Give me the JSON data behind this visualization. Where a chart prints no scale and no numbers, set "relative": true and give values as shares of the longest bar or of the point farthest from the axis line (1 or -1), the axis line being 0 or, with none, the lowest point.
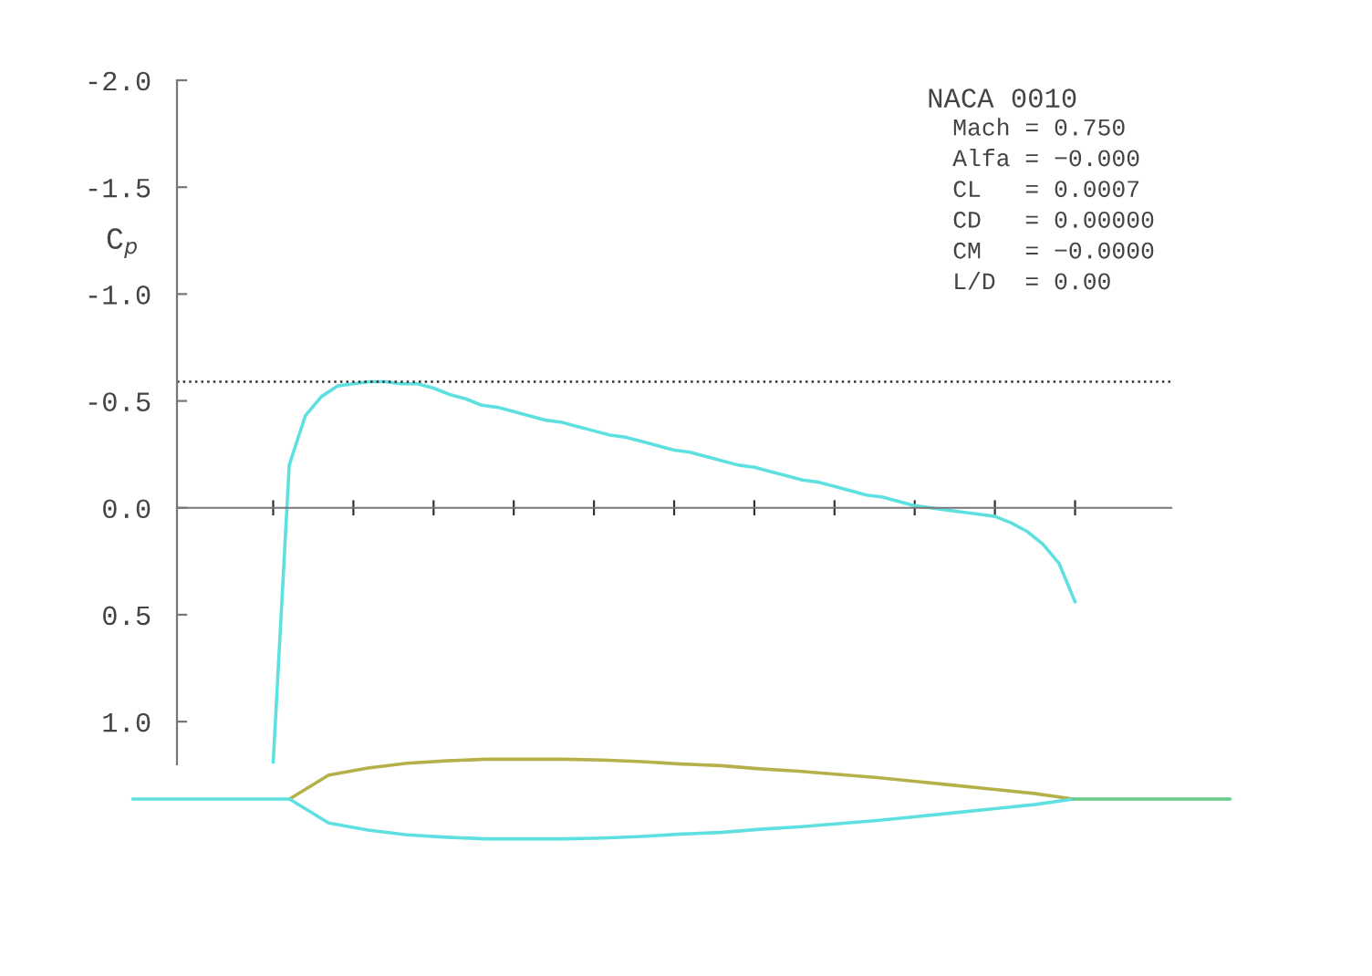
{
  "chart_data": [
    {
      "type": "line",
      "ylabel": "C$_{p}$",
      "annotations": [
        "NACA 0010",
        "Mach = 0.750",
        "Alfa = −0.000",
        "CL   = 0.0007",
        "CD   = 0.00000",
        "CM   = −0.0000",
        "L/D  = 0.00"
      ],
      "categories": [
        null,
        null,
        null,
        null,
        null,
        null,
        null,
        null,
        null,
        null,
        null,
        null,
        null,
        null,
        null,
        null,
        null,
        null,
        null,
        null,
        null,
        null,
        null,
        null,
        null,
        null,
        null,
        null,
        null,
        null,
        null,
        null,
        null,
        null,
        null,
        null,
        null,
        null,
        null,
        null,
        null,
        null,
        null,
        null,
        null,
        null,
        null,
        null,
        null,
        null,
        null
      ],
      "series": [
        {
          "color": "#5fe0e0",
          "values": [
            1.19,
            -0.2,
            -0.43,
            -0.52,
            -0.57,
            -0.58,
            -0.59,
            -0.59,
            -0.58,
            -0.58,
            -0.56,
            -0.53,
            -0.51,
            -0.48,
            -0.47,
            -0.45,
            -0.43,
            -0.41,
            -0.4,
            -0.38,
            -0.36,
            -0.34,
            -0.33,
            -0.31,
            -0.29,
            -0.27,
            -0.26,
            -0.24,
            -0.22,
            -0.2,
            -0.19,
            -0.17,
            -0.15,
            -0.13,
            -0.12,
            -0.1,
            -0.08,
            -0.06,
            -0.05,
            -0.03,
            -0.01,
            0.0,
            0.01,
            0.02,
            0.03,
            0.04,
            0.07,
            0.11,
            0.17,
            0.26,
            0.44
          ]
        }
      ],
      "ylim": [
        1.2,
        -2.0
      ],
      "yticks": [
        {
          "value": -2.0,
          "label": "-2.0"
        },
        {
          "value": -1.5,
          "label": "-1.5"
        },
        {
          "value": -1.0,
          "label": "-1.0"
        },
        {
          "value": -0.5,
          "label": "-0.5"
        },
        {
          "value": 0.0,
          "label": "0.0"
        },
        {
          "value": 0.5,
          "label": "0.5"
        },
        {
          "value": 1.0,
          "label": "1.0"
        }
      ],
      "ref_lines": [
        {
          "axis": "y",
          "value": -0.59,
          "color": "#333333",
          "line_style": "dotted"
        }
      ],
      "tick_labels": "y",
      "line_style": "solid"
    },
    {
      "type": "line",
      "relative": true,
      "categories": [
        null,
        null,
        null,
        null,
        null,
        null,
        null,
        null,
        null,
        null,
        null,
        null,
        null,
        null,
        null,
        null,
        null,
        null,
        null,
        null,
        null,
        null,
        null,
        null,
        null,
        null,
        null,
        null,
        null
      ],
      "series": [
        {
          "color": "#5fe0e0",
          "values": [
            0.5,
            0.5,
            0.5,
            0.5,
            0.5,
            null,
            null,
            null,
            null,
            null,
            null,
            null,
            null,
            null,
            null,
            null,
            null,
            null,
            null,
            null,
            null,
            null,
            null,
            null,
            null,
            null,
            null,
            null,
            null
          ]
        },
        {
          "color": "#b5b04a",
          "values": [
            null,
            null,
            null,
            null,
            0.5,
            0.8,
            0.89,
            0.95,
            0.98,
            1.0,
            1.0,
            1.0,
            0.99,
            0.97,
            0.94,
            0.92,
            0.88,
            0.85,
            0.81,
            0.77,
            0.72,
            0.67,
            0.62,
            0.57,
            0.5,
            null,
            null,
            null,
            null
          ]
        },
        {
          "color": "#5fe0e0",
          "values": [
            null,
            null,
            null,
            null,
            0.5,
            0.2,
            0.11,
            0.05,
            0.02,
            0.0,
            0.0,
            0.0,
            0.01,
            0.03,
            0.06,
            0.08,
            0.12,
            0.15,
            0.19,
            0.23,
            0.28,
            0.33,
            0.38,
            0.43,
            0.5,
            null,
            null,
            null,
            null
          ]
        },
        {
          "color": "#66cc88",
          "values": [
            null,
            null,
            null,
            null,
            null,
            null,
            null,
            null,
            null,
            null,
            null,
            null,
            null,
            null,
            null,
            null,
            null,
            null,
            null,
            null,
            null,
            null,
            null,
            null,
            0.5,
            0.5,
            0.5,
            0.5,
            0.5
          ]
        }
      ],
      "line_style": "solid"
    }
  ]
}
